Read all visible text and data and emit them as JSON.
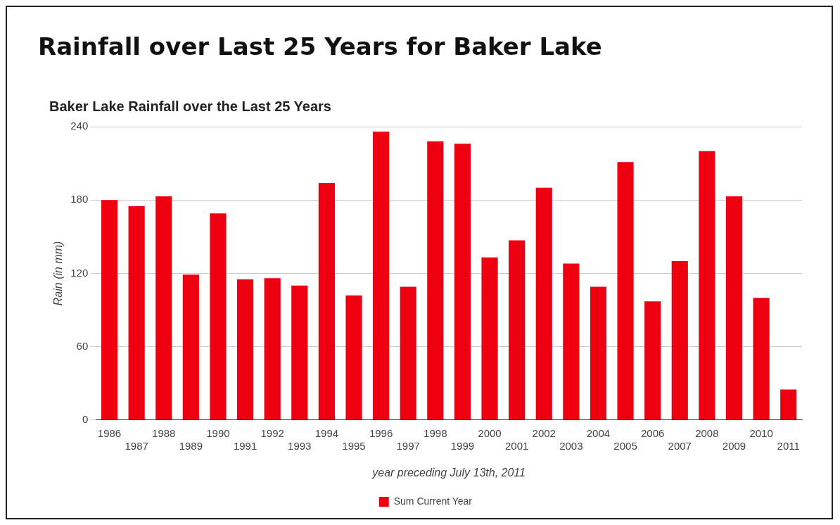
{
  "chart_data": {
    "type": "bar",
    "title": "Rainfall over Last 25 Years for Baker Lake",
    "subtitle": "Baker Lake Rainfall over the Last 25 Years",
    "xlabel": "year preceding July 13th, 2011",
    "ylabel": "Rain (in mm)",
    "categories": [
      "1986",
      "1987",
      "1988",
      "1989",
      "1990",
      "1991",
      "1992",
      "1993",
      "1994",
      "1995",
      "1996",
      "1997",
      "1998",
      "1999",
      "2000",
      "2001",
      "2002",
      "2003",
      "2004",
      "2005",
      "2006",
      "2007",
      "2008",
      "2009",
      "2010",
      "2011"
    ],
    "series": [
      {
        "name": "Sum Current Year",
        "color": "#ee0011",
        "values": [
          180,
          175,
          183,
          119,
          169,
          115,
          116,
          110,
          194,
          102,
          236,
          109,
          228,
          226,
          133,
          147,
          190,
          128,
          109,
          211,
          97,
          130,
          220,
          183,
          100,
          25
        ]
      }
    ],
    "ylim": [
      0,
      240
    ],
    "yticks": [
      0,
      60,
      120,
      180,
      240
    ],
    "grid": "y",
    "legend": "bottom"
  }
}
